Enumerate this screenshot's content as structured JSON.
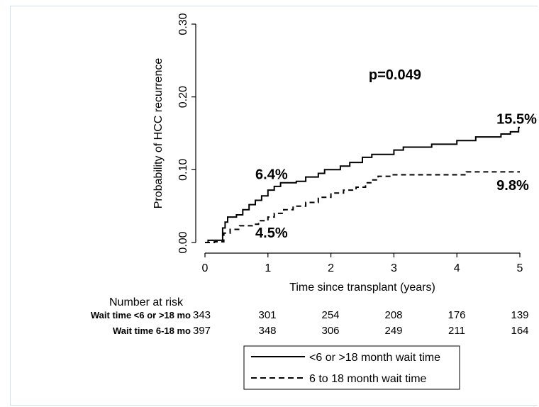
{
  "chart_data": {
    "type": "line",
    "ylabel": "Probability of HCC recurrence",
    "xlabel": "Time since transplant (years)",
    "xlim": [
      0,
      5
    ],
    "ylim": [
      0,
      0.3
    ],
    "x_ticks": [
      "0",
      "1",
      "2",
      "3",
      "4",
      "5"
    ],
    "y_ticks": [
      "0.00",
      "0.10",
      "0.20",
      "0.30"
    ],
    "grid": false,
    "legend_position": "bottom",
    "series": [
      {
        "name": "<6 or >18 month wait time",
        "style": "solid",
        "color": "#000000",
        "points": [
          [
            0,
            0
          ],
          [
            0.05,
            0.003
          ],
          [
            0.26,
            0.003
          ],
          [
            0.28,
            0.02
          ],
          [
            0.32,
            0.028
          ],
          [
            0.36,
            0.035
          ],
          [
            0.5,
            0.038
          ],
          [
            0.6,
            0.045
          ],
          [
            0.7,
            0.052
          ],
          [
            0.8,
            0.058
          ],
          [
            0.9,
            0.064
          ],
          [
            1.0,
            0.072
          ],
          [
            1.1,
            0.077
          ],
          [
            1.2,
            0.082
          ],
          [
            1.45,
            0.084
          ],
          [
            1.6,
            0.09
          ],
          [
            1.8,
            0.095
          ],
          [
            1.9,
            0.1
          ],
          [
            2.15,
            0.105
          ],
          [
            2.3,
            0.11
          ],
          [
            2.5,
            0.117
          ],
          [
            2.65,
            0.121
          ],
          [
            3.0,
            0.127
          ],
          [
            3.15,
            0.131
          ],
          [
            3.6,
            0.135
          ],
          [
            4.0,
            0.14
          ],
          [
            4.3,
            0.145
          ],
          [
            4.7,
            0.149
          ],
          [
            4.85,
            0.152
          ],
          [
            4.98,
            0.158
          ],
          [
            5.0,
            0.158
          ]
        ]
      },
      {
        "name": "6 to 18 month wait time",
        "style": "dashed",
        "color": "#000000",
        "points": [
          [
            0,
            0
          ],
          [
            0.15,
            0.001
          ],
          [
            0.25,
            0.001
          ],
          [
            0.3,
            0.013
          ],
          [
            0.4,
            0.018
          ],
          [
            0.55,
            0.023
          ],
          [
            0.75,
            0.025
          ],
          [
            0.85,
            0.03
          ],
          [
            1.0,
            0.035
          ],
          [
            1.1,
            0.04
          ],
          [
            1.25,
            0.045
          ],
          [
            1.4,
            0.05
          ],
          [
            1.6,
            0.055
          ],
          [
            1.8,
            0.062
          ],
          [
            2.0,
            0.068
          ],
          [
            2.2,
            0.072
          ],
          [
            2.4,
            0.076
          ],
          [
            2.55,
            0.082
          ],
          [
            2.65,
            0.086
          ],
          [
            2.75,
            0.091
          ],
          [
            2.95,
            0.093
          ],
          [
            4.0,
            0.093
          ],
          [
            4.15,
            0.097
          ],
          [
            5.0,
            0.097
          ]
        ]
      }
    ],
    "annotations": [
      {
        "text": "p=0.049",
        "x": 2.6,
        "y": 0.224
      },
      {
        "text": "15.5%",
        "x": 4.63,
        "y": 0.163
      },
      {
        "text": "6.4%",
        "x": 0.8,
        "y": 0.087
      },
      {
        "text": "9.8%",
        "x": 4.63,
        "y": 0.072
      },
      {
        "text": "4.5%",
        "x": 0.8,
        "y": 0.007
      }
    ],
    "risk_table": {
      "title": "Number at risk",
      "rows": [
        {
          "label": "Wait time <6 or >18 mo",
          "values": [
            "343",
            "301",
            "254",
            "208",
            "176",
            "139"
          ]
        },
        {
          "label": "Wait time 6-18 mo",
          "values": [
            "397",
            "348",
            "306",
            "249",
            "211",
            "164"
          ]
        }
      ]
    }
  }
}
